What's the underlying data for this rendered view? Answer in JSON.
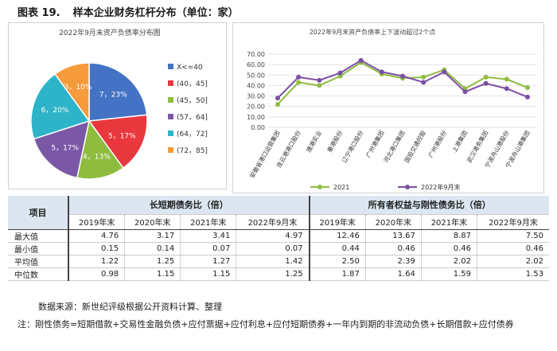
{
  "figure": {
    "number": "图表 19.",
    "title": "样本企业财务杠杆分布（单位：家）"
  },
  "pie_chart": {
    "colors": [
      "#4472c4",
      "#e8383d",
      "#8fbc3f",
      "#7b58a6",
      "#2eb4c8",
      "#f59b3c"
    ]
  },
  "line_chart": {
    "colors": {
      "2021": "#8fbc3f",
      "2022年9月末": "#7b4fa6"
    }
  },
  "chart_data": [
    {
      "type": "pie",
      "title": "2022年9月末资产负债率分布图",
      "categories": [
        "X<=40",
        "(40，45]",
        "(45，50]",
        "(57，64]",
        "(64，72]",
        "(72，85]"
      ],
      "values": [
        7,
        5,
        4,
        5,
        6,
        3
      ],
      "data_labels": [
        "7，23%",
        "5，17%",
        "4，13%",
        "5，17%",
        "6，20%",
        "3，10%"
      ],
      "legend": "right"
    },
    {
      "type": "line",
      "title": "2022年9月末资产负债率上下波动超过2个点",
      "categories": [
        "安徽省港口运营集团",
        "连云港港口股份",
        "唐港实业",
        "秦港股份",
        "辽宁港口股份",
        "广州港集团",
        "河北港口集团",
        "国投交通控股",
        "广州港股份",
        "上港集团",
        "武汉港务集团",
        "宁波舟山港股份",
        "宁波舟山港集团"
      ],
      "series": [
        {
          "name": "2021",
          "values": [
            22,
            43,
            40,
            49,
            62,
            51,
            47,
            48,
            55,
            37,
            48,
            46,
            38
          ]
        },
        {
          "name": "2022年9月末",
          "values": [
            28,
            48,
            45,
            52,
            64,
            53,
            49,
            43,
            53,
            34,
            42,
            37,
            29
          ]
        }
      ],
      "ylim": [
        0,
        70
      ],
      "yticks": [
        "0.00",
        "10.00",
        "20.00",
        "30.00",
        "40.00",
        "50.00",
        "60.00",
        "70.00"
      ],
      "legend": "bottom"
    }
  ],
  "table": {
    "row_header": "项目",
    "group1": "长短期债务比（倍）",
    "group2": "所有者权益与刚性债务比（倍）",
    "years": [
      "2019年末",
      "2020年末",
      "2021年末",
      "2022年9月末",
      "2019年末",
      "2020年末",
      "2021年末",
      "2022年9月末"
    ],
    "rows": [
      {
        "label": "最大值",
        "cells": [
          "4.76",
          "3.17",
          "3.41",
          "4.97",
          "12.46",
          "13.67",
          "8.87",
          "7.50"
        ]
      },
      {
        "label": "最小值",
        "cells": [
          "0.15",
          "0.14",
          "0.07",
          "0.07",
          "0.44",
          "0.46",
          "0.46",
          "0.46"
        ]
      },
      {
        "label": "平均值",
        "cells": [
          "1.22",
          "1.25",
          "1.27",
          "1.42",
          "2.50",
          "2.39",
          "2.02",
          "2.02"
        ]
      },
      {
        "label": "中位数",
        "cells": [
          "0.98",
          "1.15",
          "1.15",
          "1.25",
          "1.87",
          "1.64",
          "1.59",
          "1.53"
        ]
      }
    ]
  },
  "source": "数据来源：新世纪评级根据公开资料计算、整理",
  "note": "注：刚性债务=短期借款+交易性金融负债+应付票据+应付利息+应付短期债券+一年内到期的非流动负债+长期借款+应付债券"
}
